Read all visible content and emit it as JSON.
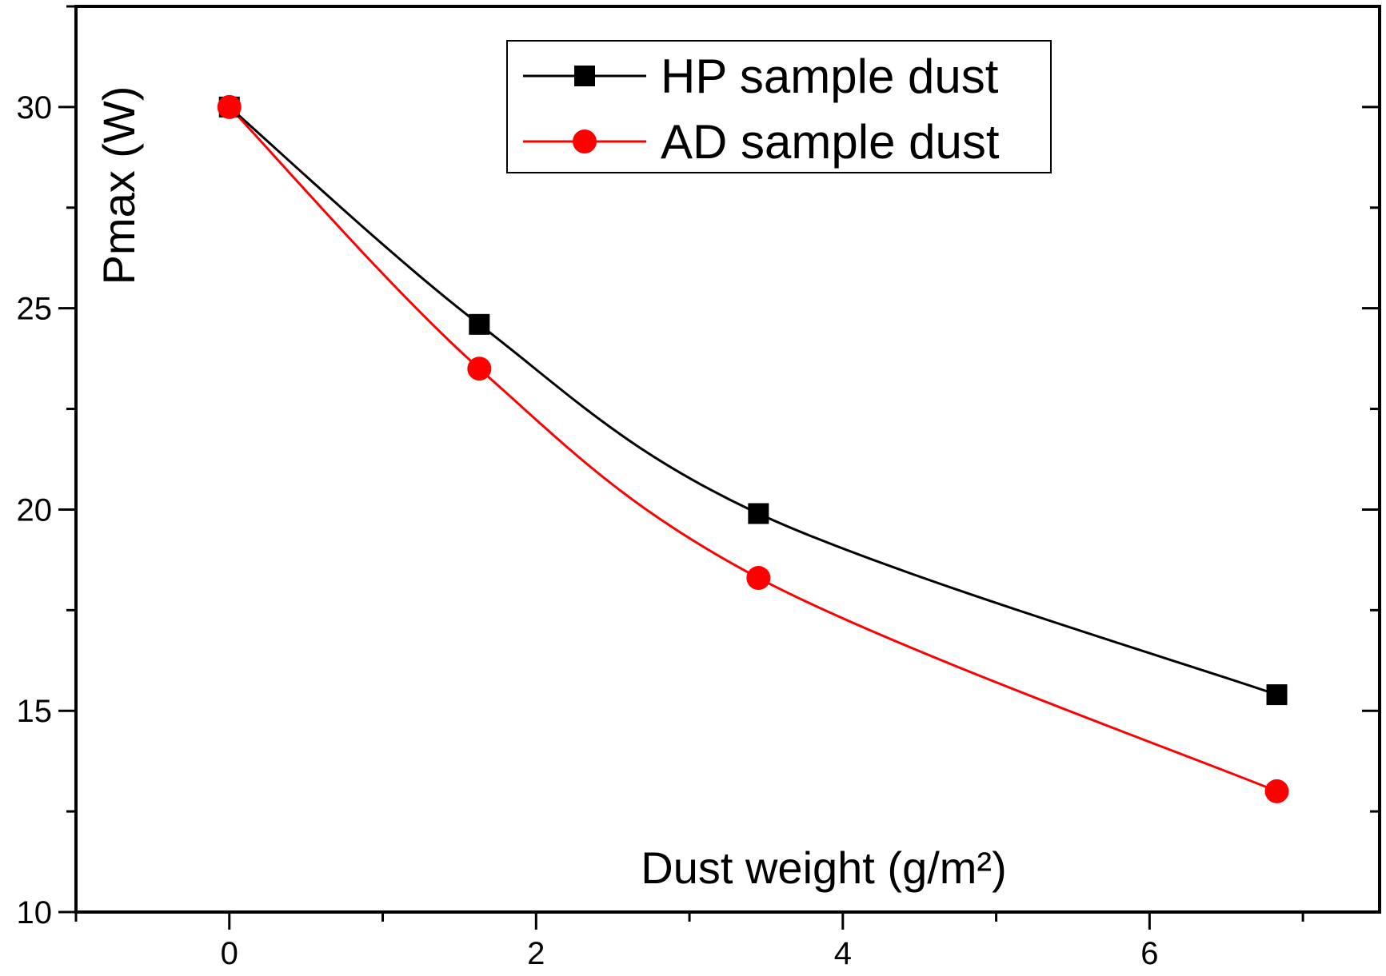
{
  "chart_data": {
    "type": "line",
    "title": "",
    "xlabel": "Dust weight (g/m²)",
    "ylabel": "Pmax (W)",
    "xlim": [
      -1,
      7.5
    ],
    "ylim": [
      10,
      32.5
    ],
    "xticks": [
      0,
      2,
      4,
      6
    ],
    "yticks": [
      10,
      15,
      20,
      25,
      30
    ],
    "grid": false,
    "legend_position": "top-center",
    "series": [
      {
        "name": "HP sample dust",
        "marker": "square",
        "color": "#000000",
        "x": [
          0,
          1.63,
          3.45,
          6.83
        ],
        "y": [
          30,
          24.6,
          19.9,
          15.4
        ]
      },
      {
        "name": "AD sample dust",
        "marker": "circle",
        "color": "#ff0000",
        "x": [
          0,
          1.63,
          3.45,
          6.83
        ],
        "y": [
          30,
          23.5,
          18.3,
          13.0
        ]
      }
    ]
  }
}
